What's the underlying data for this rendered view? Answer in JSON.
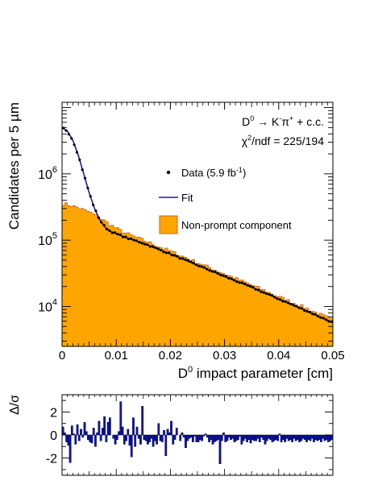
{
  "chart_data": [
    {
      "type": "histogram-with-fit",
      "xlabel_main": "D",
      "xlabel_sup": "0",
      "xlabel_rest": " impact parameter [cm]",
      "ylabel": "Candidates per 5 µm",
      "xlim": [
        0,
        0.05
      ],
      "ylim": [
        2500,
        12000000
      ],
      "yscale": "log",
      "bin_width": 0.0005,
      "xticks": [
        {
          "value": 0,
          "label": "0"
        },
        {
          "value": 0.01,
          "label": "0.01"
        },
        {
          "value": 0.02,
          "label": "0.02"
        },
        {
          "value": 0.03,
          "label": "0.03"
        },
        {
          "value": 0.04,
          "label": "0.04"
        },
        {
          "value": 0.05,
          "label": "0.05"
        }
      ],
      "yticks": [
        {
          "value": 10000,
          "base": "10",
          "exp": "4"
        },
        {
          "value": 100000,
          "base": "10",
          "exp": "5"
        },
        {
          "value": 1000000,
          "base": "10",
          "exp": "6"
        }
      ],
      "annotations": {
        "decay_a": "D",
        "decay_a_sup": "0",
        "decay_b": " → K",
        "decay_b_sup": "-",
        "decay_c": "π",
        "decay_c_sup": "+",
        "decay_d": " + c.c.",
        "chi_a": "χ",
        "chi_sup": "2",
        "chi_b": "/ndf = 225/194"
      },
      "legend": {
        "data_a": "Data (5.9 fb",
        "data_sup": "-1",
        "data_b": ")",
        "fit": "Fit",
        "nonprompt": "Non-prompt component"
      },
      "colors": {
        "nonprompt_fill": "#ffa500",
        "nonprompt_line": "#d0641e",
        "fit": "#1a1aa8",
        "data": "#000000"
      },
      "series": [
        {
          "name": "Data (5.9 fb-1)",
          "type": "points",
          "description": "total prompt + non-prompt fit + fluctuations"
        },
        {
          "name": "Fit",
          "type": "line",
          "x": [
            0,
            0.001,
            0.002,
            0.003,
            0.004,
            0.005,
            0.006,
            0.007,
            0.008,
            0.009,
            0.01,
            0.012,
            0.015,
            0.02,
            0.025,
            0.03,
            0.035,
            0.04,
            0.045,
            0.05
          ],
          "y": [
            5000000,
            4400000,
            3200000,
            1900000,
            1000000,
            520000,
            300000,
            200000,
            155000,
            135000,
            125000,
            108000,
            90000,
            62000,
            42000,
            28500,
            19500,
            13000,
            8700,
            5700
          ]
        },
        {
          "name": "Non-prompt component",
          "type": "step-fill",
          "x": [
            0,
            0.001,
            0.003,
            0.005,
            0.007,
            0.009,
            0.01,
            0.012,
            0.015,
            0.02,
            0.025,
            0.03,
            0.035,
            0.04,
            0.045,
            0.05
          ],
          "y": [
            360000,
            345000,
            310000,
            265000,
            215000,
            170000,
            150000,
            125000,
            100000,
            68000,
            46000,
            31000,
            21000,
            14000,
            9500,
            6200
          ]
        }
      ]
    },
    {
      "type": "bar",
      "ylabel": "Δ/σ",
      "xlim": [
        0,
        0.05
      ],
      "ylim": [
        -3.5,
        3.5
      ],
      "yticks": [
        {
          "value": 2,
          "label": "2"
        },
        {
          "value": 0,
          "label": "0"
        },
        {
          "value": -2,
          "label": "-2"
        }
      ],
      "color": "#0a14c8",
      "values": [
        0.7,
        0.2,
        -0.6,
        -0.9,
        -2.4,
        0.8,
        0.1,
        -0.8,
        0.9,
        -0.5,
        0.5,
        -0.2,
        1.1,
        0.3,
        -0.4,
        -0.6,
        -0.7,
        0.6,
        -1.0,
        0.2,
        1.2,
        -0.5,
        0.6,
        1.6,
        -0.6,
        1.1,
        1.5,
        0.0,
        -0.3,
        -0.8,
        -0.4,
        0.3,
        2.9,
        0.7,
        -0.8,
        -0.5,
        0.5,
        -0.9,
        -1.9,
        1.5,
        -1.0,
        0.7,
        -0.3,
        -0.8,
        2.5,
        -0.4,
        -0.5,
        -0.8,
        -0.6,
        -0.3,
        -1.0,
        -0.5,
        -0.8,
        1.0,
        -0.5,
        -0.6,
        0.4,
        -1.8,
        0.5,
        0.2,
        1.2,
        -0.8,
        -0.4,
        0.6,
        0.0,
        -0.5,
        0.2,
        -0.2,
        -1.1,
        -0.5,
        -0.3,
        -0.2,
        -0.6,
        -0.1,
        -0.6,
        -0.6,
        -0.4,
        -0.5,
        -0.1,
        0.1,
        -0.2,
        -0.6,
        -0.4,
        -0.8,
        -0.6,
        -0.5,
        -0.4,
        -2.5,
        -0.5,
        0.2,
        -0.6,
        -0.5,
        -0.2,
        -0.4,
        -0.3,
        -0.6,
        -0.5,
        -0.4,
        -0.1,
        -0.8,
        -0.5,
        -0.3,
        -0.6,
        -0.4,
        -0.7,
        -0.4,
        -0.5,
        -0.5,
        -0.3,
        -0.6,
        -0.2,
        -0.4,
        -0.8,
        -0.5,
        -0.3,
        -0.4,
        -0.6,
        -0.5,
        -0.4,
        -0.5,
        0.1,
        -0.6,
        -0.4,
        -0.6,
        -0.3,
        -0.5,
        -0.4,
        -0.6,
        -0.3,
        -0.5,
        -0.4,
        -0.6,
        -0.5,
        -0.3,
        -0.4,
        -0.6,
        -0.4,
        -0.5,
        -0.3,
        -0.6,
        -0.4,
        -0.5,
        -0.4,
        -0.6,
        -0.3,
        -0.5,
        -0.4,
        -0.6,
        -0.5,
        -0.4
      ]
    }
  ]
}
